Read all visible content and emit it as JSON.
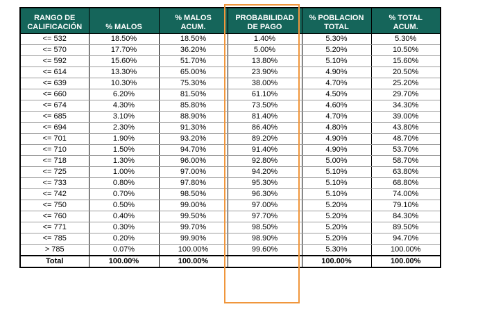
{
  "colors": {
    "header_bg": "#15655a",
    "header_text": "#ffffff",
    "highlight": "#f0963c"
  },
  "headers": {
    "rango": [
      "RANGO DE",
      "CALIFICACIÓN"
    ],
    "malos": [
      "% MALOS"
    ],
    "malos_acum": [
      "% MALOS",
      "ACUM."
    ],
    "probabilidad": [
      "PROBABILIDAD",
      "DE PAGO"
    ],
    "poblacion": [
      "% POBLACION",
      "TOTAL"
    ],
    "total_acum": [
      "% TOTAL",
      "ACUM."
    ]
  },
  "rows": [
    [
      "<= 532",
      "18.50%",
      "18.50%",
      "1.40%",
      "5.30%",
      "5.30%"
    ],
    [
      "<= 570",
      "17.70%",
      "36.20%",
      "5.00%",
      "5.20%",
      "10.50%"
    ],
    [
      "<= 592",
      "15.60%",
      "51.70%",
      "13.80%",
      "5.10%",
      "15.60%"
    ],
    [
      "<= 614",
      "13.30%",
      "65.00%",
      "23.90%",
      "4.90%",
      "20.50%"
    ],
    [
      "<= 639",
      "10.30%",
      "75.30%",
      "38.00%",
      "4.70%",
      "25.20%"
    ],
    [
      "<= 660",
      "6.20%",
      "81.50%",
      "61.10%",
      "4.50%",
      "29.70%"
    ],
    [
      "<= 674",
      "4.30%",
      "85.80%",
      "73.50%",
      "4.60%",
      "34.30%"
    ],
    [
      "<= 685",
      "3.10%",
      "88.90%",
      "81.40%",
      "4.70%",
      "39.00%"
    ],
    [
      "<= 694",
      "2.30%",
      "91.30%",
      "86.40%",
      "4.80%",
      "43.80%"
    ],
    [
      "<= 701",
      "1.90%",
      "93.20%",
      "89.20%",
      "4.90%",
      "48.70%"
    ],
    [
      "<= 710",
      "1.50%",
      "94.70%",
      "91.40%",
      "4.90%",
      "53.70%"
    ],
    [
      "<= 718",
      "1.30%",
      "96.00%",
      "92.80%",
      "5.00%",
      "58.70%"
    ],
    [
      "<= 725",
      "1.00%",
      "97.00%",
      "94.20%",
      "5.10%",
      "63.80%"
    ],
    [
      "<= 733",
      "0.80%",
      "97.80%",
      "95.30%",
      "5.10%",
      "68.80%"
    ],
    [
      "<= 742",
      "0.70%",
      "98.50%",
      "96.30%",
      "5.10%",
      "74.00%"
    ],
    [
      "<= 750",
      "0.50%",
      "99.00%",
      "97.00%",
      "5.20%",
      "79.10%"
    ],
    [
      "<= 760",
      "0.40%",
      "99.50%",
      "97.70%",
      "5.20%",
      "84.30%"
    ],
    [
      "<= 771",
      "0.30%",
      "99.70%",
      "98.50%",
      "5.20%",
      "89.50%"
    ],
    [
      "<= 785",
      "0.20%",
      "99.90%",
      "98.90%",
      "5.20%",
      "94.70%"
    ],
    [
      "> 785",
      "0.07%",
      "100.00%",
      "99.60%",
      "5.30%",
      "100.00%"
    ]
  ],
  "total_row": [
    "Total",
    "100.00%",
    "100.00%",
    "",
    "100.00%",
    "100.00%"
  ]
}
